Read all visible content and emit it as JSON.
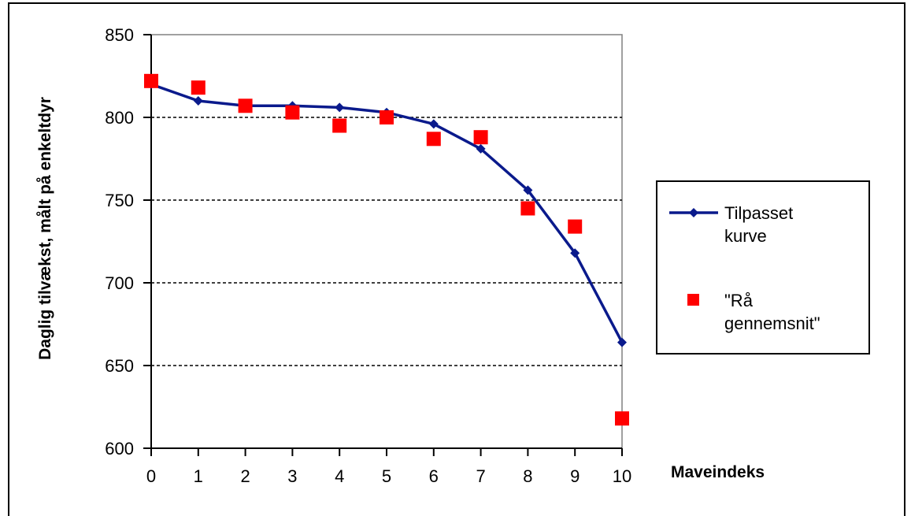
{
  "chart_data": {
    "type": "line",
    "title": "",
    "xlabel": "Maveindeks",
    "ylabel": "Daglig tilvækst, målt på enkeltdyr",
    "x": [
      0,
      1,
      2,
      3,
      4,
      5,
      6,
      7,
      8,
      9,
      10
    ],
    "x_tick_labels": [
      "0",
      "1",
      "2",
      "3",
      "4",
      "5",
      "6",
      "7",
      "8",
      "9",
      "10"
    ],
    "xlim": [
      0,
      10
    ],
    "ylim": [
      600,
      850
    ],
    "y_ticks": [
      600,
      650,
      700,
      750,
      800,
      850
    ],
    "y_tick_labels": [
      "600",
      "650",
      "700",
      "750",
      "800",
      "850"
    ],
    "grid": "horizontal dashed",
    "legend_position": "right",
    "series": [
      {
        "name_lines": [
          "Tilpasset",
          "kurve"
        ],
        "kind": "line",
        "marker": "diamond",
        "color": "#0a1a8c",
        "values": [
          820,
          810,
          807,
          807,
          806,
          803,
          796,
          781,
          756,
          718,
          664
        ]
      },
      {
        "name_lines": [
          "\"Rå",
          "gennemsnit\""
        ],
        "kind": "scatter",
        "marker": "square",
        "color": "#ff0000",
        "values": [
          822,
          818,
          807,
          803,
          795,
          800,
          787,
          788,
          745,
          734,
          618
        ]
      }
    ]
  }
}
